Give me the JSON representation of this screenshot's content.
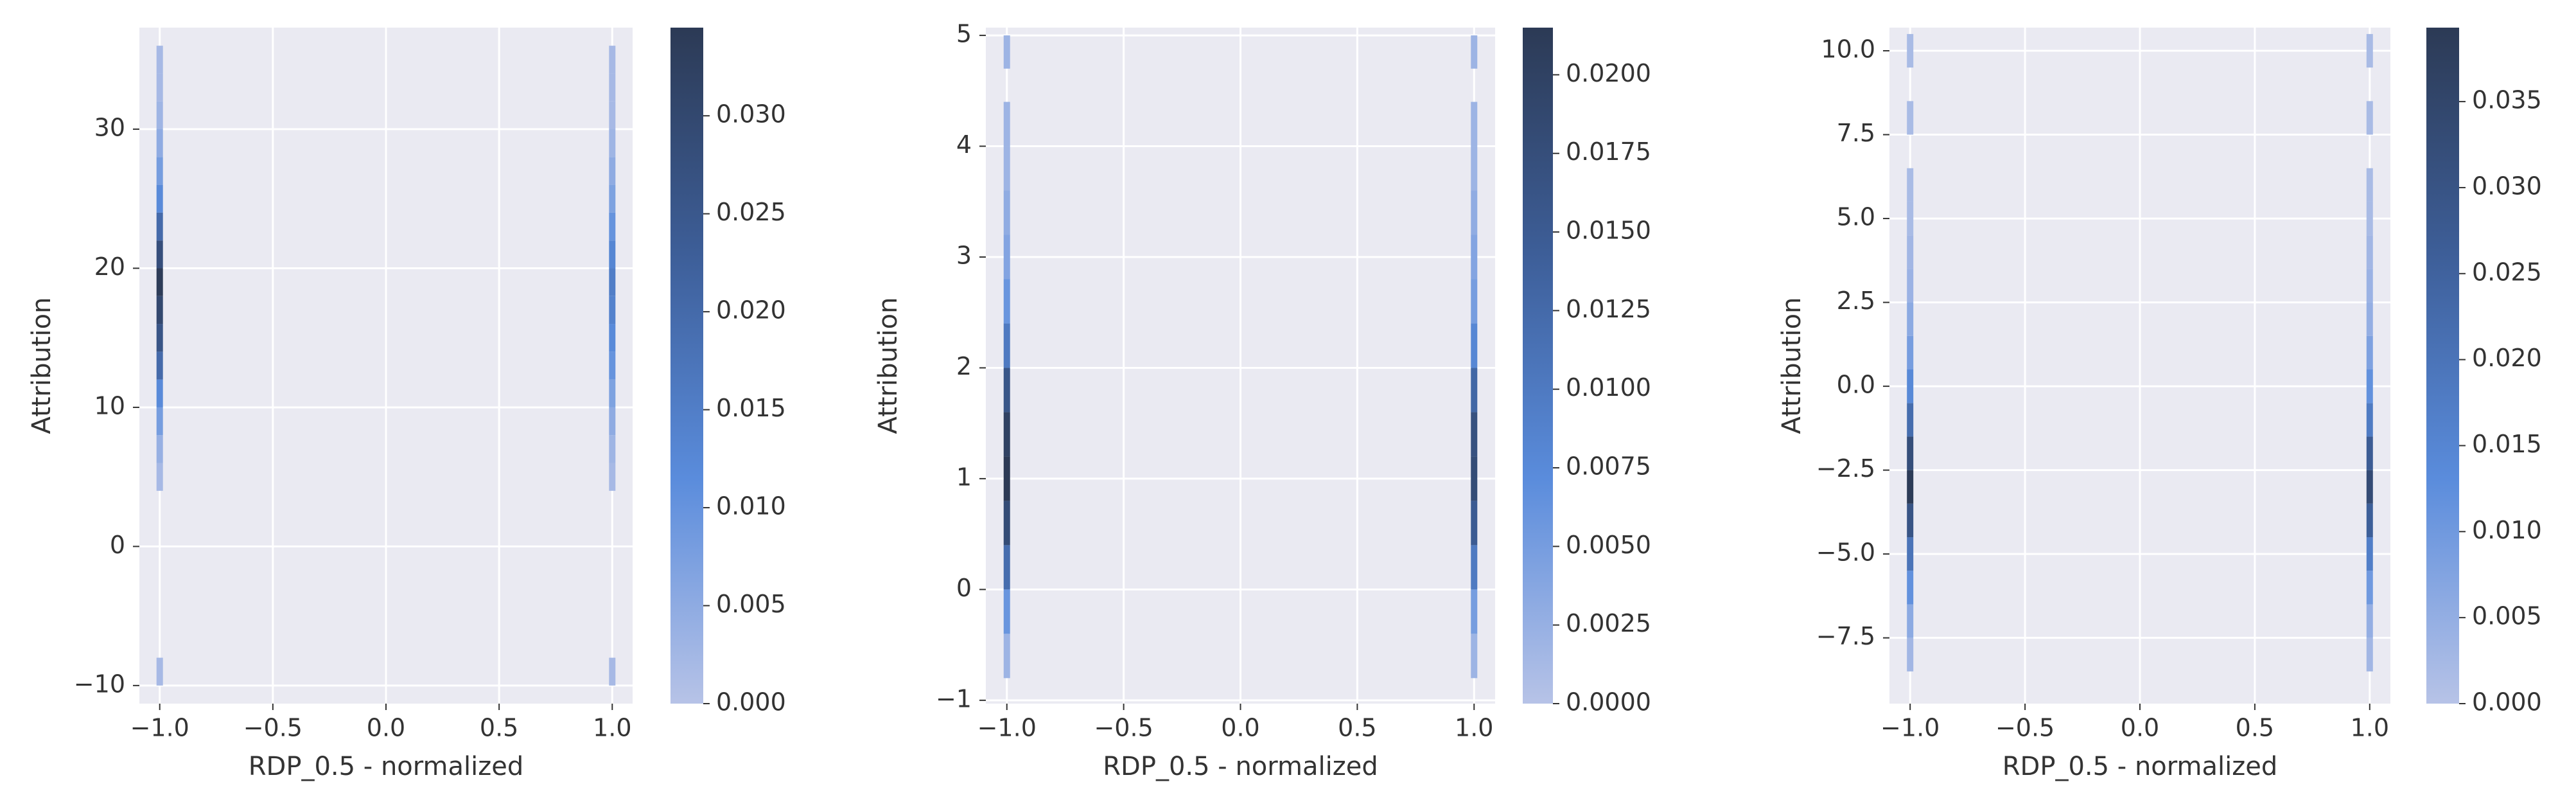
{
  "chart_data": [
    {
      "type": "hist2d",
      "xlabel": "RDP_0.5 - normalized",
      "ylabel": "Attribution",
      "xlim": [
        -1.09,
        1.09
      ],
      "xticks": [
        {
          "value": -1,
          "label": "−1.0"
        },
        {
          "value": -0.5,
          "label": "−0.5"
        },
        {
          "value": 0,
          "label": "0.0"
        },
        0.5,
        {
          "value": 1,
          "label": "1.0"
        }
      ],
      "ylim": [
        -11.3,
        37.3
      ],
      "yticks": [
        {
          "value": -10,
          "label": "−10"
        },
        0,
        10,
        20,
        30
      ],
      "clim": [
        0,
        0.0345
      ],
      "cticks": [
        {
          "value": 0,
          "label": "0.000"
        },
        0.005,
        {
          "value": 0.01,
          "label": "0.010"
        },
        0.015,
        {
          "value": 0.02,
          "label": "0.020"
        },
        0.025,
        {
          "value": 0.03,
          "label": "0.030"
        }
      ],
      "cmap": [
        "#b7c3e7",
        "#5a8cdc",
        "#3d5e98",
        "#2c3a55"
      ],
      "grid": true,
      "ybins": [
        -10,
        -8,
        -6,
        -4,
        -2,
        0,
        2,
        4,
        6,
        8,
        10,
        12,
        14,
        16,
        18,
        20,
        22,
        24,
        26,
        28,
        30,
        32,
        34,
        36
      ],
      "columns": [
        {
          "x": -1,
          "values": [
            0.002,
            null,
            null,
            null,
            null,
            null,
            null,
            0.002,
            0.004,
            0.008,
            0.012,
            0.02,
            0.026,
            0.03,
            0.034,
            0.028,
            0.02,
            0.012,
            0.008,
            0.005,
            0.003,
            0.002,
            0.002
          ]
        },
        {
          "x": 1,
          "values": [
            0.002,
            null,
            null,
            null,
            null,
            null,
            null,
            0.002,
            0.003,
            0.005,
            0.007,
            0.01,
            0.012,
            0.014,
            0.015,
            0.013,
            0.01,
            0.007,
            0.005,
            0.003,
            0.002,
            0.002,
            0.002
          ]
        }
      ]
    },
    {
      "type": "hist2d",
      "xlabel": "RDP_0.5 - normalized",
      "ylabel": "Attribution",
      "xlim": [
        -1.09,
        1.09
      ],
      "xticks": [
        {
          "value": -1,
          "label": "−1.0"
        },
        {
          "value": -0.5,
          "label": "−0.5"
        },
        {
          "value": 0,
          "label": "0.0"
        },
        0.5,
        {
          "value": 1,
          "label": "1.0"
        }
      ],
      "ylim": [
        -1.03,
        5.07
      ],
      "yticks": [
        {
          "value": -1,
          "label": "−1"
        },
        0,
        1,
        2,
        3,
        4,
        5
      ],
      "clim": [
        0,
        0.0215
      ],
      "cticks": [
        {
          "value": 0,
          "label": "0.0000"
        },
        0.0025,
        {
          "value": 0.005,
          "label": "0.0050"
        },
        0.0075,
        {
          "value": 0.01,
          "label": "0.0100"
        },
        0.0125,
        {
          "value": 0.015,
          "label": "0.0150"
        },
        0.0175,
        {
          "value": 0.02,
          "label": "0.0200"
        }
      ],
      "cmap": [
        "#b7c3e7",
        "#5a8cdc",
        "#3d5e98",
        "#2c3a55"
      ],
      "grid": true,
      "ybins": [
        -0.8,
        -0.4,
        0,
        0.4,
        0.8,
        1.2,
        1.6,
        2.0,
        2.4,
        2.8,
        3.2,
        3.6,
        4.0,
        4.4,
        4.7,
        5.0
      ],
      "columns": [
        {
          "x": -1,
          "values": [
            0.002,
            0.006,
            0.012,
            0.018,
            0.0215,
            0.02,
            0.016,
            0.01,
            0.006,
            0.004,
            0.003,
            0.002,
            0.002,
            null,
            0.002
          ]
        },
        {
          "x": 1,
          "values": [
            0.002,
            0.005,
            0.01,
            0.015,
            0.018,
            0.017,
            0.013,
            0.008,
            0.005,
            0.004,
            0.003,
            0.002,
            0.002,
            null,
            0.002
          ]
        }
      ]
    },
    {
      "type": "hist2d",
      "xlabel": "RDP_0.5 - normalized",
      "ylabel": "Attribution",
      "xlim": [
        -1.09,
        1.09
      ],
      "xticks": [
        {
          "value": -1,
          "label": "−1.0"
        },
        {
          "value": -0.5,
          "label": "−0.5"
        },
        {
          "value": 0,
          "label": "0.0"
        },
        0.5,
        {
          "value": 1,
          "label": "1.0"
        }
      ],
      "ylim": [
        -9.46,
        10.69
      ],
      "yticks": [
        {
          "value": -7.5,
          "label": "−7.5"
        },
        {
          "value": -5,
          "label": "−5.0"
        },
        {
          "value": -2.5,
          "label": "−2.5"
        },
        {
          "value": 0,
          "label": "0.0"
        },
        2.5,
        {
          "value": 5,
          "label": "5.0"
        },
        7.5,
        {
          "value": 10,
          "label": "10.0"
        }
      ],
      "clim": [
        0,
        0.0393
      ],
      "cticks": [
        {
          "value": 0,
          "label": "0.000"
        },
        0.005,
        {
          "value": 0.01,
          "label": "0.010"
        },
        0.015,
        {
          "value": 0.02,
          "label": "0.020"
        },
        0.025,
        {
          "value": 0.03,
          "label": "0.030"
        },
        0.035
      ],
      "cmap": [
        "#b7c3e7",
        "#5a8cdc",
        "#3d5e98",
        "#2c3a55"
      ],
      "grid": true,
      "ybins": [
        -8.5,
        -7.5,
        -6.5,
        -5.5,
        -4.5,
        -3.5,
        -2.5,
        -1.5,
        -0.5,
        0.5,
        1.5,
        2.5,
        3.5,
        4.5,
        5.5,
        6.5,
        7.5,
        8.5,
        9.5,
        10.5
      ],
      "columns": [
        {
          "x": -1,
          "values": [
            0.003,
            0.006,
            0.012,
            0.02,
            0.03,
            0.039,
            0.032,
            0.022,
            0.014,
            0.009,
            0.006,
            0.004,
            0.003,
            0.002,
            0.002,
            null,
            0.002,
            null,
            0.002
          ]
        },
        {
          "x": 1,
          "values": [
            0.003,
            0.005,
            0.01,
            0.017,
            0.026,
            0.033,
            0.027,
            0.018,
            0.012,
            0.008,
            0.005,
            0.004,
            0.003,
            0.002,
            0.002,
            null,
            0.002,
            null,
            0.002
          ]
        }
      ]
    }
  ]
}
